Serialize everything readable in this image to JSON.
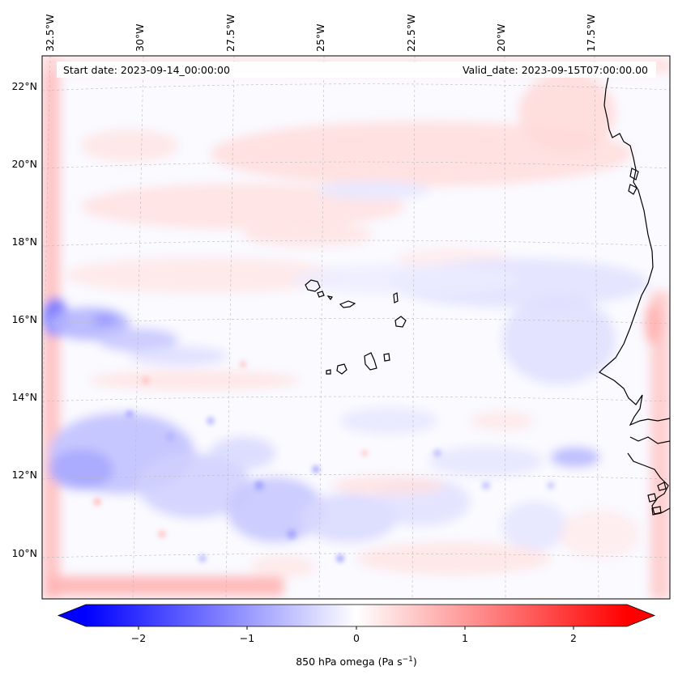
{
  "map": {
    "header": {
      "start_date": "Start date: 2023-09-14_00:00:00",
      "valid_date": "Valid_date: 2023-09-15T07:00:00.00"
    },
    "longitude_labels": [
      "32.5°W",
      "30°W",
      "27.5°W",
      "25°W",
      "22.5°W",
      "20°W",
      "17.5°W"
    ],
    "latitude_labels": [
      "22°N",
      "20°N",
      "18°N",
      "16°N",
      "14°N",
      "12°N",
      "10°N"
    ],
    "colorbar": {
      "ticks": [
        "−2",
        "−1",
        "0",
        "1",
        "2"
      ],
      "label_main": "850 hPa omega (Pa s",
      "label_exp": "−1",
      "label_end": ")",
      "vmin": -2.6,
      "vmax": 2.6
    },
    "colors": {
      "negative": "#0000ff",
      "positive": "#ff0000",
      "neutral": "#ffffff",
      "coastline": "#000000",
      "gridline": "#bbbbbb"
    }
  }
}
